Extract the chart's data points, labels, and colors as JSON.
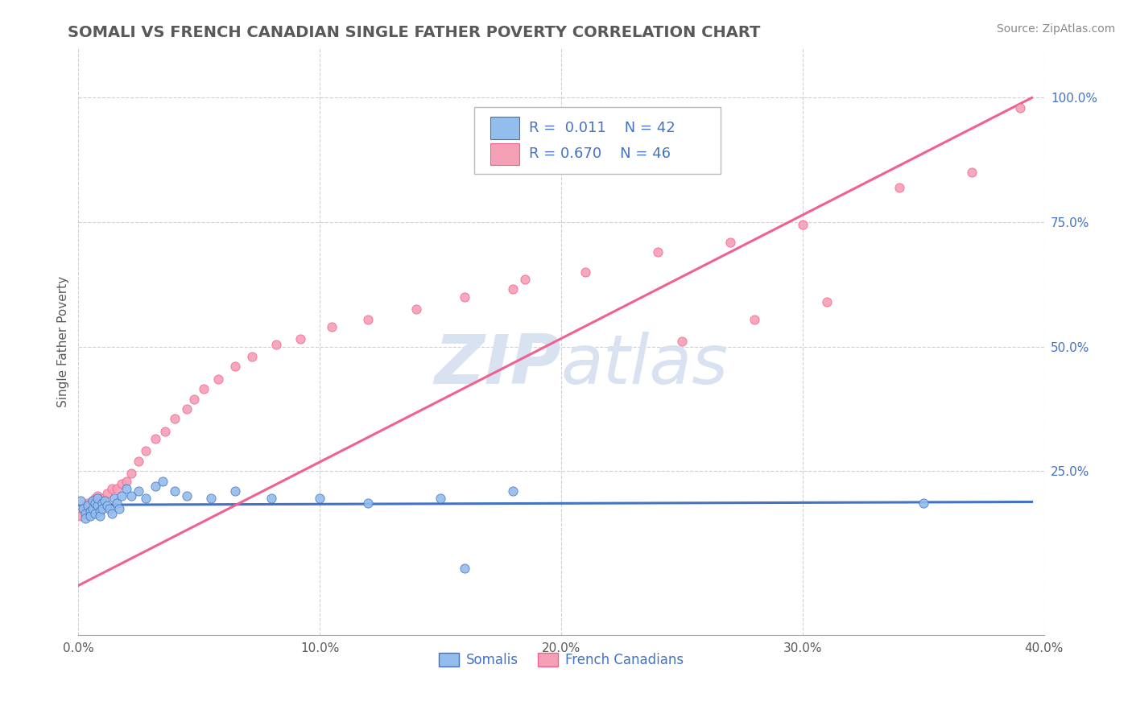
{
  "title": "SOMALI VS FRENCH CANADIAN SINGLE FATHER POVERTY CORRELATION CHART",
  "source": "Source: ZipAtlas.com",
  "ylabel": "Single Father Poverty",
  "xlim": [
    0.0,
    0.4
  ],
  "ylim": [
    -0.08,
    1.1
  ],
  "xtick_vals": [
    0.0,
    0.1,
    0.2,
    0.3,
    0.4
  ],
  "ytick_labels": [
    "25.0%",
    "50.0%",
    "75.0%",
    "100.0%"
  ],
  "ytick_vals": [
    0.25,
    0.5,
    0.75,
    1.0
  ],
  "somali_R": 0.011,
  "somali_N": 42,
  "french_R": 0.67,
  "french_N": 46,
  "somali_color": "#92BDEC",
  "french_color": "#F5A0B5",
  "somali_line_color": "#4472C4",
  "french_line_color": "#F06090",
  "legend_text_color": "#4472C4",
  "title_color": "#595959",
  "background_color": "#FFFFFF",
  "grid_color": "#CCCCCC",
  "watermark_color": "#D8E2F0",
  "somali_scatter_x": [
    0.001,
    0.002,
    0.003,
    0.003,
    0.004,
    0.005,
    0.005,
    0.006,
    0.006,
    0.007,
    0.007,
    0.008,
    0.008,
    0.009,
    0.009,
    0.01,
    0.01,
    0.011,
    0.012,
    0.013,
    0.014,
    0.015,
    0.016,
    0.017,
    0.018,
    0.02,
    0.022,
    0.025,
    0.028,
    0.032,
    0.035,
    0.04,
    0.045,
    0.055,
    0.065,
    0.08,
    0.1,
    0.12,
    0.15,
    0.18,
    0.35,
    0.16
  ],
  "somali_scatter_y": [
    0.19,
    0.175,
    0.165,
    0.155,
    0.18,
    0.17,
    0.16,
    0.175,
    0.19,
    0.185,
    0.165,
    0.18,
    0.195,
    0.17,
    0.16,
    0.185,
    0.175,
    0.19,
    0.18,
    0.175,
    0.165,
    0.195,
    0.185,
    0.175,
    0.2,
    0.215,
    0.2,
    0.21,
    0.195,
    0.22,
    0.23,
    0.21,
    0.2,
    0.195,
    0.21,
    0.195,
    0.195,
    0.185,
    0.195,
    0.21,
    0.185,
    0.055
  ],
  "french_scatter_x": [
    0.001,
    0.002,
    0.003,
    0.004,
    0.005,
    0.006,
    0.006,
    0.007,
    0.008,
    0.009,
    0.01,
    0.012,
    0.014,
    0.016,
    0.018,
    0.02,
    0.022,
    0.025,
    0.028,
    0.032,
    0.036,
    0.04,
    0.045,
    0.048,
    0.052,
    0.058,
    0.065,
    0.072,
    0.082,
    0.092,
    0.105,
    0.12,
    0.14,
    0.16,
    0.185,
    0.21,
    0.24,
    0.27,
    0.3,
    0.34,
    0.37,
    0.39,
    0.28,
    0.31,
    0.25,
    0.18
  ],
  "french_scatter_y": [
    0.16,
    0.175,
    0.18,
    0.185,
    0.165,
    0.175,
    0.19,
    0.195,
    0.2,
    0.185,
    0.195,
    0.205,
    0.215,
    0.215,
    0.225,
    0.23,
    0.245,
    0.27,
    0.29,
    0.315,
    0.33,
    0.355,
    0.375,
    0.395,
    0.415,
    0.435,
    0.46,
    0.48,
    0.505,
    0.515,
    0.54,
    0.555,
    0.575,
    0.6,
    0.635,
    0.65,
    0.69,
    0.71,
    0.745,
    0.82,
    0.85,
    0.98,
    0.555,
    0.59,
    0.51,
    0.615
  ],
  "somali_trend_x": [
    0.0,
    0.395
  ],
  "somali_trend_y": [
    0.182,
    0.188
  ],
  "french_trend_x": [
    0.0,
    0.395
  ],
  "french_trend_y": [
    0.02,
    1.0
  ]
}
